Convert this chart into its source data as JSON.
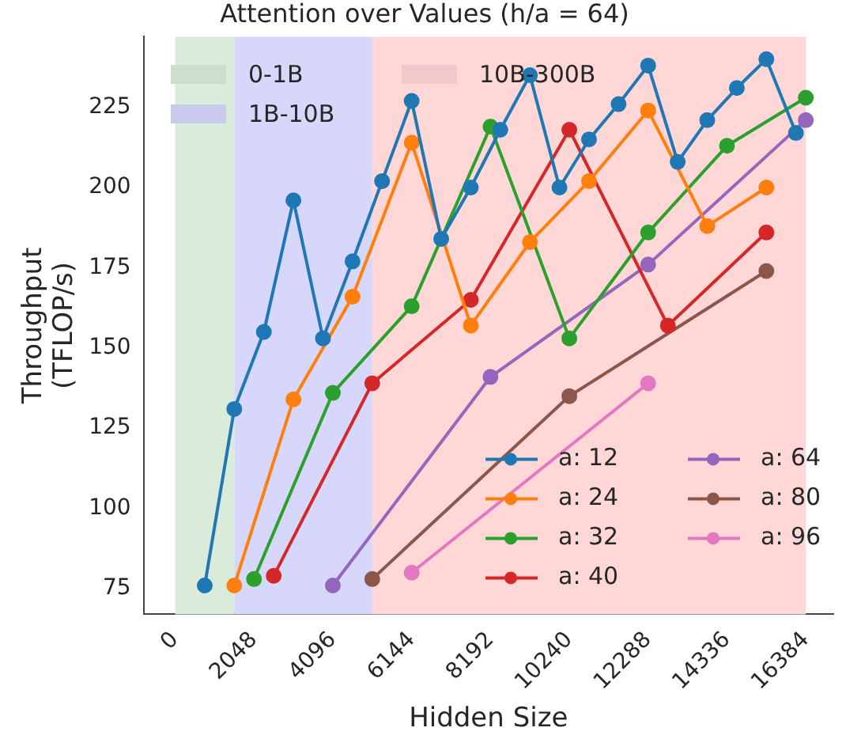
{
  "chart_data": {
    "type": "line",
    "title": "Attention over Values (h/a = 64)",
    "xlabel": "Hidden Size",
    "ylabel": "Throughput\n(TFLOP/s)",
    "xlim": [
      -820,
      17100
    ],
    "xticks": [
      0,
      2048,
      4096,
      6144,
      8192,
      10240,
      12288,
      14336,
      16384
    ],
    "ylim": [
      67,
      247
    ],
    "yticks": [
      75,
      100,
      125,
      150,
      175,
      200,
      225
    ],
    "grid": false,
    "legend": "bottom right",
    "marker": "circle",
    "line_style": "solid",
    "bands": [
      {
        "axis": "x",
        "from": 0,
        "to": 1536,
        "label": "0-1B",
        "color": "#d9ecd9"
      },
      {
        "axis": "x",
        "from": 1536,
        "to": 5120,
        "label": "1B-10B",
        "color": "#d7d7fb"
      },
      {
        "axis": "x",
        "from": 5120,
        "to": 16384,
        "label": "10B-300B",
        "color": "#ffd7d7"
      }
    ],
    "series": [
      {
        "name": "a: 12",
        "color": "#1f77b4",
        "x": [
          768,
          1536,
          2304,
          3072,
          3840,
          4608,
          5376,
          6144,
          6912,
          7680,
          8448,
          9216,
          9984,
          10752,
          11520,
          12288,
          13056,
          13824,
          14592,
          15360,
          16128
        ],
        "values": [
          76,
          131,
          155,
          196,
          153,
          177,
          202,
          227,
          184,
          200,
          218,
          235,
          200,
          215,
          226,
          238,
          208,
          221,
          231,
          240,
          217
        ]
      },
      {
        "name": "a: 24",
        "color": "#ff7f0e",
        "x": [
          1536,
          3072,
          4608,
          6144,
          7680,
          9216,
          10752,
          12288,
          13824,
          15360
        ],
        "values": [
          76,
          134,
          166,
          214,
          157,
          183,
          202,
          224,
          188,
          200
        ]
      },
      {
        "name": "a: 32",
        "color": "#2ca02c",
        "x": [
          2048,
          4096,
          6144,
          8192,
          10240,
          12288,
          14336,
          16384
        ],
        "values": [
          78,
          136,
          163,
          219,
          153,
          186,
          213,
          228
        ]
      },
      {
        "name": "a: 40",
        "color": "#d62728",
        "x": [
          2560,
          5120,
          7680,
          10240,
          12800,
          15360
        ],
        "values": [
          79,
          139,
          165,
          218,
          157,
          186
        ]
      },
      {
        "name": "a: 64",
        "color": "#9467bd",
        "x": [
          4096,
          8192,
          12288,
          16384
        ],
        "values": [
          76,
          141,
          176,
          221
        ]
      },
      {
        "name": "a: 80",
        "color": "#8c564b",
        "x": [
          5120,
          10240,
          15360
        ],
        "values": [
          78,
          135,
          174
        ]
      },
      {
        "name": "a: 96",
        "color": "#e377c2",
        "x": [
          6144,
          12288
        ],
        "values": [
          80,
          139
        ]
      }
    ]
  }
}
